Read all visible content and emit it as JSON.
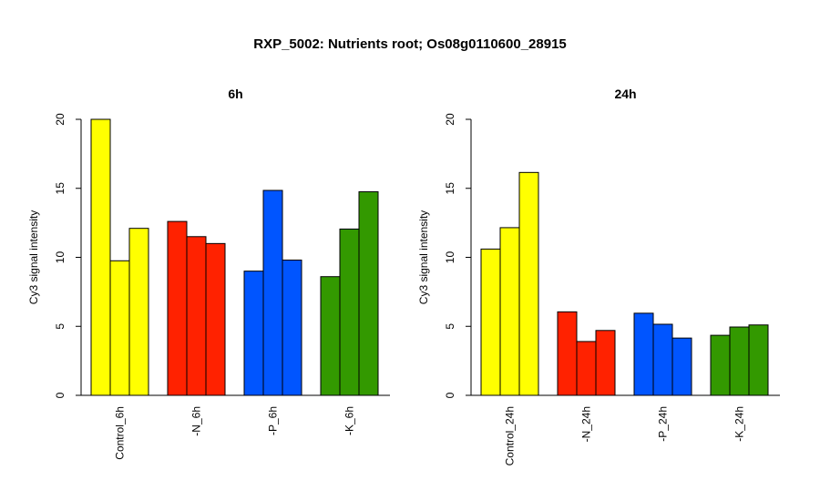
{
  "title": "RXP_5002: Nutrients root; Os08g0110600_28915",
  "colors": {
    "control": "#ffff00",
    "N": "#ff2200",
    "P": "#0055ff",
    "K": "#339900",
    "axis": "#000000"
  },
  "chart_data": [
    {
      "type": "bar",
      "title": "6h",
      "ylabel": "Cy3 signal intensity",
      "ylim": [
        0,
        20
      ],
      "yticks": [
        "0",
        "5",
        "10",
        "15",
        "20"
      ],
      "grid": false,
      "groups": [
        {
          "label": "Control_6h",
          "color_key": "control",
          "values": [
            20.0,
            9.75,
            12.1
          ]
        },
        {
          "label": "-N_6h",
          "color_key": "N",
          "values": [
            12.6,
            11.5,
            11.0
          ]
        },
        {
          "label": "-P_6h",
          "color_key": "P",
          "values": [
            9.0,
            14.85,
            9.8
          ]
        },
        {
          "label": "-K_6h",
          "color_key": "K",
          "values": [
            8.6,
            12.05,
            14.75
          ]
        }
      ]
    },
    {
      "type": "bar",
      "title": "24h",
      "ylabel": "Cy3 signal intensity",
      "ylim": [
        0,
        20
      ],
      "yticks": [
        "0",
        "5",
        "10",
        "15",
        "20"
      ],
      "grid": false,
      "groups": [
        {
          "label": "Control_24h",
          "color_key": "control",
          "values": [
            10.6,
            12.15,
            16.15
          ]
        },
        {
          "label": "-N_24h",
          "color_key": "N",
          "values": [
            6.05,
            3.9,
            4.7
          ]
        },
        {
          "label": "-P_24h",
          "color_key": "P",
          "values": [
            5.95,
            5.15,
            4.15
          ]
        },
        {
          "label": "-K_24h",
          "color_key": "K",
          "values": [
            4.35,
            4.95,
            5.1
          ]
        }
      ]
    }
  ]
}
